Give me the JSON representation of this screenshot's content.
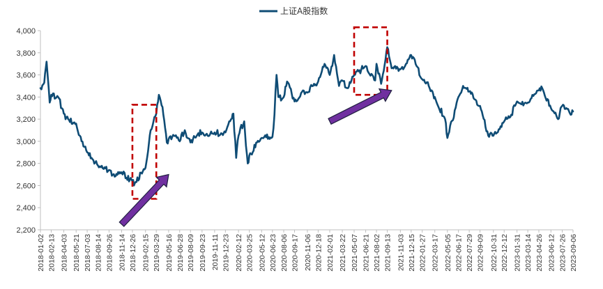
{
  "chart_data": {
    "type": "line",
    "title": "",
    "xlabel": "",
    "ylabel": "",
    "ylim": [
      2200,
      4000
    ],
    "y_ticks": [
      2200,
      2400,
      2600,
      2800,
      3000,
      3200,
      3400,
      3600,
      3800,
      4000
    ],
    "y_tick_labels": [
      "2,200",
      "2,400",
      "2,600",
      "2,800",
      "3,000",
      "3,200",
      "3,400",
      "3,600",
      "3,800",
      "4,000"
    ],
    "x_tick_labels": [
      "2018-01-02",
      "2018-02-13",
      "2018-04-03",
      "2018-05-21",
      "2018-07-03",
      "2018-08-14",
      "2018-09-26",
      "2018-11-14",
      "2018-12-26",
      "2019-02-15",
      "2019-03-29",
      "2019-05-16",
      "2019-06-28",
      "2019-08-09",
      "2019-09-23",
      "2019-11-11",
      "2019-12-23",
      "2020-02-12",
      "2020-03-25",
      "2020-05-12",
      "2020-06-23",
      "2020-08-06",
      "2020-09-17",
      "2020-11-06",
      "2020-12-18",
      "2021-02-01",
      "2021-03-22",
      "2021-05-07",
      "2021-06-21",
      "2021-08-02",
      "2021-09-13",
      "2021-11-03",
      "2021-12-15",
      "2022-01-27",
      "2022-03-17",
      "2022-05-05",
      "2022-06-17",
      "2022-07-29",
      "2022-09-09",
      "2022-10-31",
      "2022-12-12",
      "2023-01-31",
      "2023-03-14",
      "2023-04-26",
      "2023-06-12",
      "2023-07-26",
      "2023-09-06"
    ],
    "grid": false,
    "legend": "top-center",
    "series": [
      {
        "name": "上证A股指数",
        "color": "#0f4c75",
        "x": [
          "2018-01-02",
          "2018-01-17",
          "2018-01-26",
          "2018-02-07",
          "2018-02-13",
          "2018-03-12",
          "2018-04-03",
          "2018-04-20",
          "2018-05-21",
          "2018-06-11",
          "2018-07-03",
          "2018-07-20",
          "2018-08-14",
          "2018-09-05",
          "2018-09-26",
          "2018-10-18",
          "2018-11-14",
          "2018-12-03",
          "2018-12-26",
          "2019-01-04",
          "2019-02-15",
          "2019-03-07",
          "2019-03-29",
          "2019-04-08",
          "2019-04-22",
          "2019-05-09",
          "2019-05-16",
          "2019-06-06",
          "2019-06-28",
          "2019-07-18",
          "2019-08-09",
          "2019-09-05",
          "2019-09-23",
          "2019-10-15",
          "2019-11-11",
          "2019-12-03",
          "2019-12-23",
          "2020-01-14",
          "2020-01-23",
          "2020-02-03",
          "2020-02-12",
          "2020-03-05",
          "2020-03-19",
          "2020-03-25",
          "2020-04-24",
          "2020-05-12",
          "2020-06-23",
          "2020-07-01",
          "2020-07-09",
          "2020-07-16",
          "2020-08-06",
          "2020-08-19",
          "2020-09-17",
          "2020-10-20",
          "2020-11-06",
          "2020-12-02",
          "2020-12-18",
          "2021-01-12",
          "2021-02-01",
          "2021-02-18",
          "2021-03-09",
          "2021-03-22",
          "2021-04-13",
          "2021-05-07",
          "2021-06-21",
          "2021-07-28",
          "2021-08-02",
          "2021-08-20",
          "2021-09-13",
          "2021-09-30",
          "2021-11-03",
          "2021-11-25",
          "2021-12-15",
          "2022-01-05",
          "2022-01-27",
          "2022-03-08",
          "2022-03-17",
          "2022-04-26",
          "2022-05-05",
          "2022-06-17",
          "2022-07-05",
          "2022-07-29",
          "2022-08-18",
          "2022-09-09",
          "2022-10-11",
          "2022-10-31",
          "2022-12-12",
          "2023-01-05",
          "2023-01-31",
          "2023-03-14",
          "2023-04-26",
          "2023-05-09",
          "2023-06-12",
          "2023-07-10",
          "2023-07-26",
          "2023-08-11",
          "2023-08-28",
          "2023-09-06"
        ],
        "values": [
          3480,
          3530,
          3720,
          3350,
          3420,
          3400,
          3250,
          3200,
          3160,
          3000,
          2900,
          2850,
          2780,
          2750,
          2740,
          2680,
          2720,
          2670,
          2640,
          2620,
          2760,
          3100,
          3250,
          3420,
          3310,
          2990,
          3020,
          3050,
          3000,
          3100,
          2990,
          3060,
          3080,
          3050,
          3080,
          3060,
          3080,
          3200,
          3250,
          2850,
          3050,
          3180,
          2800,
          2870,
          2990,
          3030,
          3040,
          3240,
          3600,
          3400,
          3400,
          3540,
          3360,
          3460,
          3440,
          3520,
          3540,
          3700,
          3600,
          3780,
          3500,
          3550,
          3480,
          3600,
          3680,
          3550,
          3700,
          3520,
          3850,
          3660,
          3650,
          3700,
          3780,
          3680,
          3560,
          3450,
          3400,
          3200,
          3030,
          3400,
          3500,
          3450,
          3380,
          3320,
          3050,
          3050,
          3180,
          3220,
          3360,
          3350,
          3460,
          3480,
          3300,
          3200,
          3320,
          3300,
          3240,
          3270
        ]
      }
    ],
    "annotations": [
      {
        "type": "dashed-box",
        "color": "#c00000",
        "x_start": "2018-12-26",
        "x_end": "2019-03-29",
        "y_low": 2480,
        "y_high": 3330
      },
      {
        "type": "dashed-box",
        "color": "#c00000",
        "x_start": "2021-05-07",
        "x_end": "2021-09-13",
        "y_low": 3420,
        "y_high": 4030
      },
      {
        "type": "arrow",
        "color": "#7030a0",
        "x_start": "2018-11-14",
        "y_start": 2250,
        "x_end": "2019-05-16",
        "y_end": 2700
      },
      {
        "type": "arrow",
        "color": "#7030a0",
        "x_start": "2021-02-01",
        "y_start": 3180,
        "x_end": "2021-09-30",
        "y_end": 3460
      }
    ]
  }
}
